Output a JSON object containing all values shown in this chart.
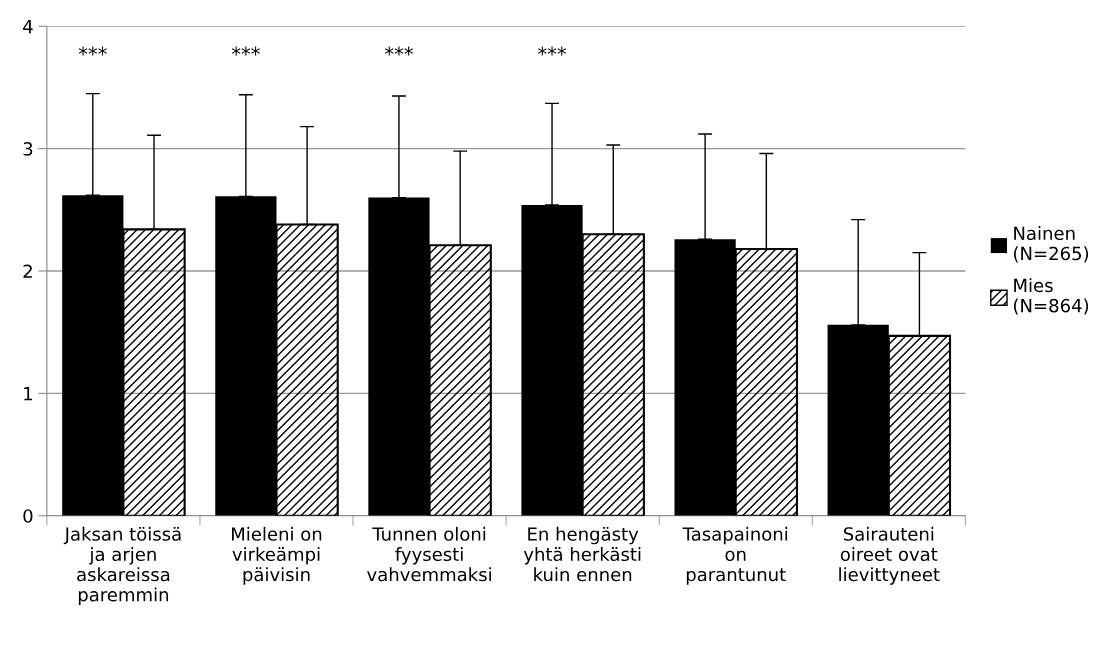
{
  "chart_data": {
    "type": "bar",
    "categories": [
      "Jaksan töissä\nja arjen\naskareissa\nparemmin",
      "Mieleni on\nvirkeämpi\npäivisin",
      "Tunnen oloni\nfyysesti\nvahvemmaksi",
      "En hengästy\nyhtä herkästi\nkuin ennen",
      "Tasapainoni\non\nparantunut",
      "Sairauteni\noireet ovat\nlievittyneet"
    ],
    "series": [
      {
        "name": "Nainen\n(N=265)",
        "color": "#000000",
        "values": [
          2.62,
          2.61,
          2.6,
          2.54,
          2.26,
          1.56
        ],
        "errors": [
          [
            2.62,
            3.45
          ],
          [
            2.61,
            3.44
          ],
          [
            2.6,
            3.43
          ],
          [
            2.54,
            3.37
          ],
          [
            2.26,
            3.12
          ],
          [
            1.56,
            2.42
          ]
        ]
      },
      {
        "name": "Mies\n(N=864)",
        "color": "#000000",
        "values": [
          2.34,
          2.38,
          2.21,
          2.3,
          2.18,
          1.47
        ],
        "errors": [
          [
            2.34,
            3.11
          ],
          [
            2.38,
            3.18
          ],
          [
            2.21,
            2.98
          ],
          [
            2.3,
            3.03
          ],
          [
            2.18,
            2.96
          ],
          [
            1.47,
            2.15
          ]
        ]
      }
    ],
    "ylim": [
      0,
      4
    ],
    "yticks": [
      0,
      1,
      2,
      3,
      4
    ],
    "grid": "y",
    "legend": "right",
    "annotations": [
      "***",
      "***",
      "***",
      "***"
    ]
  }
}
